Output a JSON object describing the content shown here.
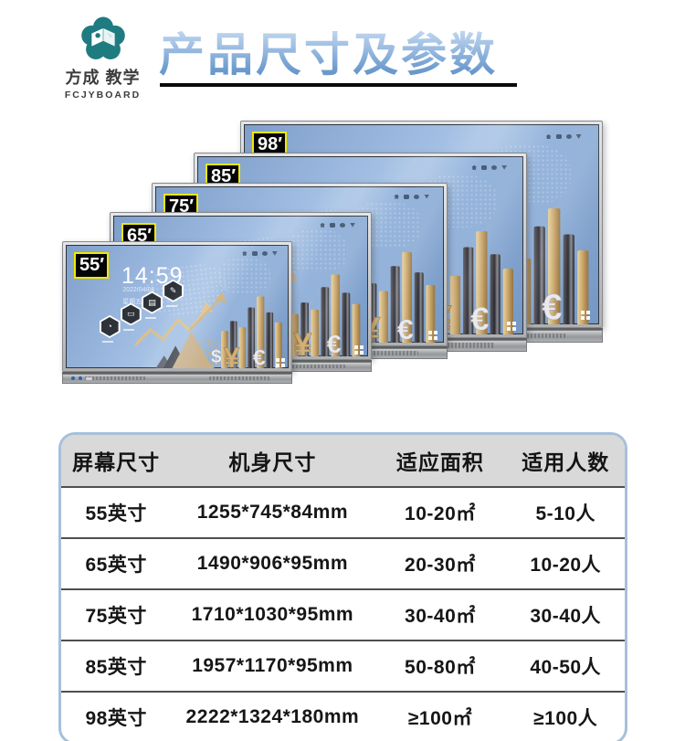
{
  "brand": {
    "logo_cn": "方成 教学",
    "logo_en": "FCJYBOARD"
  },
  "header": {
    "title": "产品尺寸及参数"
  },
  "products": [
    {
      "id": "98",
      "tag": "98′"
    },
    {
      "id": "85",
      "tag": "85′"
    },
    {
      "id": "75",
      "tag": "75′"
    },
    {
      "id": "65",
      "tag": "65′"
    },
    {
      "id": "55",
      "tag": "55′"
    }
  ],
  "front_screen": {
    "clock": "14:59",
    "date": "2022/04/08",
    "weekday": "星期五"
  },
  "wallpaper": {
    "currency_dollar": "$",
    "currency_yen": "¥",
    "currency_euro": "€"
  },
  "screen_icons": [
    "home-icon",
    "gallery-icon",
    "record-icon",
    "wifi-icon"
  ],
  "table": {
    "columns": [
      "屏幕尺寸",
      "机身尺寸",
      "适应面积",
      "适用人数"
    ],
    "rows": [
      [
        "55英寸",
        "1255*745*84mm",
        "10-20㎡",
        "5-10人"
      ],
      [
        "65英寸",
        "1490*906*95mm",
        "20-30㎡",
        "10-20人"
      ],
      [
        "75英寸",
        "1710*1030*95mm",
        "30-40㎡",
        "30-40人"
      ],
      [
        "85英寸",
        "1957*1170*95mm",
        "50-80㎡",
        "40-50人"
      ],
      [
        "98英寸",
        "2222*1324*180mm",
        "≥100㎡",
        "≥100人"
      ]
    ]
  },
  "colors": {
    "accent_teal": "#1e7b80",
    "title_blue": "#6d9bce",
    "tag_border": "#f3e800",
    "screen_blue": "#93b1d8",
    "gold": "#c2a06b",
    "table_border": "#a6c0da",
    "header_bg": "#d9d9d9"
  }
}
